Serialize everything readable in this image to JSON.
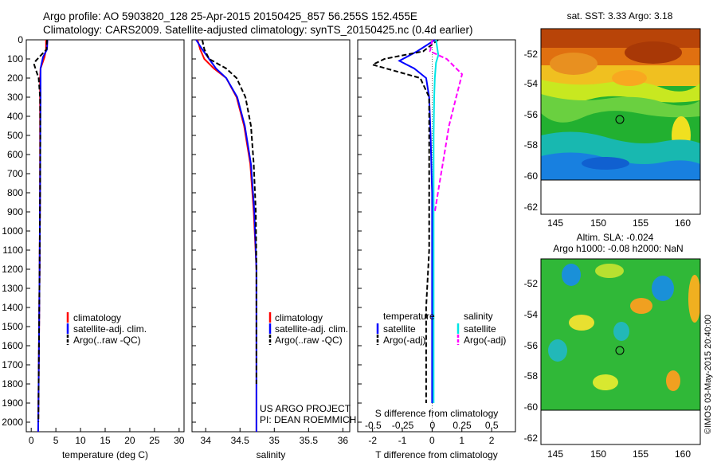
{
  "header": {
    "line1": "Argo profile: AO 5903820_128 25-Apr-2015 20150425_857 56.255S 152.455E",
    "line2": "Climatology: CARS2009. Satellite-adjusted climatology: synTS_20150425.nc (0.4d earlier)"
  },
  "colors": {
    "climatology": "#ff0000",
    "satellite": "#0000ff",
    "argo": "#000000",
    "satellite_diff_s": "#00e5e5",
    "argo_diff_s": "#ff00ff"
  },
  "depth_ticks": [
    0,
    100,
    200,
    300,
    400,
    500,
    600,
    700,
    800,
    900,
    1000,
    1100,
    1200,
    1300,
    1400,
    1500,
    1600,
    1700,
    1800,
    1900,
    2000
  ],
  "temperature_panel": {
    "xlabel": "temperature (deg C)",
    "xticks": [
      0,
      5,
      10,
      15,
      20,
      25,
      30
    ],
    "legend": [
      "climatology",
      "satellite-adj. clim.",
      "Argo(..raw -QC)"
    ]
  },
  "salinity_panel": {
    "xlabel": "salinity",
    "xticks": [
      "34",
      "34.5",
      "35",
      "35.5",
      "36"
    ],
    "legend": [
      "climatology",
      "satellite-adj. clim.",
      "Argo(..raw -QC)"
    ],
    "note1": "US ARGO PROJECT",
    "note2": "PI: DEAN ROEMMICH"
  },
  "diff_panel": {
    "xlabel": "T difference from climatology",
    "s_label": "S difference from climatology",
    "t_ticks": [
      "-2",
      "-1",
      "0",
      "1",
      "2"
    ],
    "s_ticks": [
      "-0.5",
      "-0.25",
      "0",
      "0.25",
      "0.5"
    ],
    "legend_temp_title": "temperature",
    "legend_temp": [
      "satellite",
      "Argo(-adj)"
    ],
    "legend_sal_title": "salinity",
    "legend_sal": [
      "satellite",
      "Argo(-adj)"
    ]
  },
  "map_sst": {
    "title": "sat. SST: 3.33 Argo: 3.18",
    "yticks": [
      "-52",
      "-54",
      "-56",
      "-58",
      "-60",
      "-62"
    ],
    "xticks": [
      "145",
      "150",
      "155",
      "160"
    ]
  },
  "map_sla": {
    "title1": "Altim. SLA: -0.024",
    "title2": "Argo h1000: -0.08 h2000: NaN",
    "yticks": [
      "-52",
      "-54",
      "-56",
      "-58",
      "-60",
      "-62"
    ],
    "xticks": [
      "145",
      "150",
      "155",
      "160"
    ]
  },
  "credit": "©IMOS 03-May-2015 20:40:00",
  "chart_data": [
    {
      "type": "line",
      "panel": "temperature",
      "xlabel": "temperature (deg C)",
      "ylabel": "",
      "xlim": [
        -1,
        31
      ],
      "ylim": [
        2050,
        0
      ],
      "series": [
        {
          "name": "climatology",
          "x": [
            3.0,
            3.0,
            2.7,
            1.9,
            1.8,
            1.8,
            1.8,
            1.8,
            1.75,
            1.7,
            1.6,
            1.5,
            1.4
          ],
          "y": [
            0,
            50,
            90,
            150,
            200,
            300,
            500,
            800,
            1000,
            1200,
            1500,
            1800,
            2050
          ]
        },
        {
          "name": "satellite-adj. clim.",
          "x": [
            3.3,
            3.2,
            2.4,
            1.9,
            1.9,
            1.9,
            1.85,
            1.8,
            1.75,
            1.7,
            1.6,
            1.5,
            1.4
          ],
          "y": [
            0,
            50,
            90,
            150,
            200,
            300,
            500,
            800,
            1000,
            1200,
            1500,
            1800,
            2050
          ]
        },
        {
          "name": "Argo(..raw -QC)",
          "x": [
            3.2,
            3.1,
            0.9,
            0.6,
            1.5,
            1.8,
            1.85,
            1.8,
            1.75,
            1.7,
            1.6,
            1.5,
            1.45
          ],
          "y": [
            0,
            50,
            110,
            130,
            200,
            300,
            500,
            800,
            1000,
            1200,
            1500,
            1800,
            2000
          ]
        }
      ]
    },
    {
      "type": "line",
      "panel": "salinity",
      "xlabel": "salinity",
      "ylabel": "",
      "xlim": [
        33.8,
        36.1
      ],
      "ylim": [
        2050,
        0
      ],
      "series": [
        {
          "name": "climatology",
          "x": [
            33.88,
            33.92,
            33.98,
            34.12,
            34.3,
            34.45,
            34.56,
            34.65,
            34.7,
            34.74,
            34.74,
            34.74,
            34.74
          ],
          "y": [
            0,
            50,
            100,
            150,
            200,
            300,
            450,
            650,
            900,
            1200,
            1500,
            1800,
            2050
          ]
        },
        {
          "name": "satellite-adj. clim.",
          "x": [
            33.86,
            33.95,
            34.05,
            34.15,
            34.3,
            34.46,
            34.57,
            34.66,
            34.71,
            34.74,
            34.74,
            34.74,
            34.74
          ],
          "y": [
            0,
            50,
            100,
            150,
            200,
            300,
            450,
            650,
            900,
            1200,
            1500,
            1800,
            2050
          ]
        },
        {
          "name": "Argo(..raw -QC)",
          "x": [
            33.95,
            33.98,
            34.05,
            34.3,
            34.45,
            34.58,
            34.66,
            34.7,
            34.73,
            34.74,
            34.74,
            34.74
          ],
          "y": [
            0,
            50,
            100,
            150,
            200,
            300,
            450,
            650,
            900,
            1200,
            1500,
            1800
          ]
        }
      ]
    },
    {
      "type": "line",
      "panel": "differences",
      "xlabel": "T difference from climatology",
      "ylabel": "",
      "xlim": [
        -2.5,
        2.8
      ],
      "ylim": [
        2050,
        0
      ],
      "series": [
        {
          "name": "satellite",
          "x": [
            0.1,
            -0.5,
            -1.1,
            -0.6,
            -0.2,
            -0.1,
            -0.05,
            0,
            0,
            0,
            0,
            0
          ],
          "y": [
            0,
            60,
            110,
            150,
            200,
            300,
            500,
            800,
            1100,
            1400,
            1700,
            1900
          ]
        },
        {
          "name": "Argo(-adj)",
          "x": [
            0.2,
            -0.3,
            -1.6,
            -2.0,
            -0.4,
            -0.1,
            -0.1,
            -0.1,
            -0.1,
            -0.2,
            -0.2,
            -0.2
          ],
          "y": [
            0,
            60,
            100,
            130,
            200,
            300,
            500,
            800,
            1100,
            1400,
            1700,
            1900
          ]
        }
      ]
    },
    {
      "type": "line",
      "panel": "differences",
      "xlabel": "S difference from climatology",
      "ylabel": "",
      "xlim": [
        -0.63,
        0.7
      ],
      "ylim": [
        2050,
        0
      ],
      "series": [
        {
          "name": "satellite",
          "x": [
            0.03,
            0.05,
            0.03,
            0.02,
            0.015,
            0.01,
            0.01,
            0.01,
            0.01,
            0.01,
            0.01,
            0.01
          ],
          "y": [
            0,
            80,
            120,
            200,
            300,
            500,
            700,
            1000,
            1300,
            1600,
            1800,
            1900
          ]
        },
        {
          "name": "Argo(-adj)",
          "x": [
            0.0,
            -0.02,
            0.12,
            0.25,
            0.2,
            0.14,
            0.1,
            0.06,
            0.02
          ],
          "y": [
            0,
            60,
            100,
            180,
            300,
            450,
            600,
            750,
            900
          ]
        }
      ]
    }
  ]
}
